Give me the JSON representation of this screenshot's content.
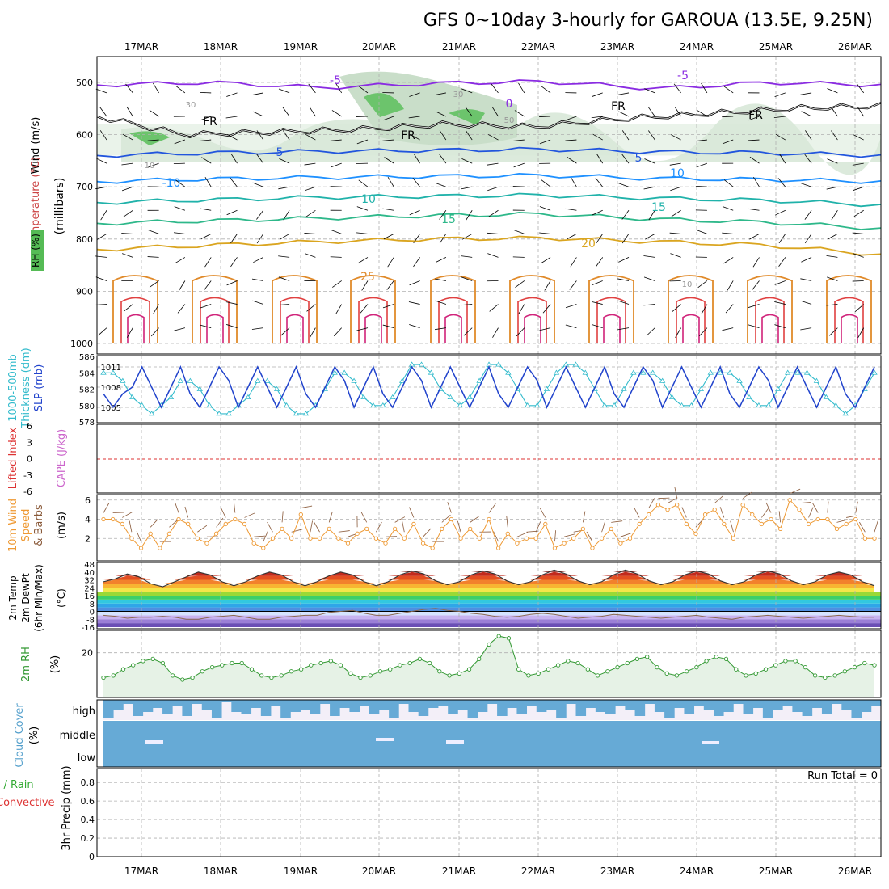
{
  "title": "GFS 0~10day 3-hourly for GAROUA (13.5E, 9.25N)",
  "colors": {
    "frame": "#000000",
    "grid": "#b0b0b0",
    "slp": "#2244cc",
    "thickness": "#33bbcc",
    "wind": "#ee9933",
    "rh": "#339933",
    "rhFill": "#e6f2e6",
    "cloud": "#66aad6",
    "cloudBg": "#f3eff8",
    "liRed": "#dd3333",
    "cape": "#cc66cc",
    "freezing": "#000000"
  },
  "chart_data": [
    {
      "type": "line",
      "panel": "upper-air",
      "ylabel": "(millibars)",
      "y_label_parts": [
        "Wind (m/s)",
        "Temperature (°C)",
        "RH (%)"
      ],
      "y_ticks": [
        500,
        600,
        700,
        800,
        900,
        1000
      ],
      "x_labels": [
        "17MAR",
        "18MAR",
        "19MAR",
        "20MAR",
        "21MAR",
        "22MAR",
        "23MAR",
        "24MAR",
        "25MAR",
        "26MAR"
      ],
      "contour_labels": [
        "-5",
        "-5",
        "0",
        "FR",
        "FR",
        "FR",
        "FR",
        "5",
        "5",
        "-10",
        "10",
        "10",
        "15",
        "15",
        "20",
        "25",
        "30",
        "10",
        "10",
        "30",
        "50"
      ],
      "isotherms": [
        {
          "label": "-5",
          "color": "#8a2be2",
          "p": [
            505,
            500,
            510,
            502,
            498,
            512,
            500,
            505
          ]
        },
        {
          "label": "5",
          "color": "#2255dd",
          "p": [
            640,
            635,
            632,
            630,
            628,
            633,
            635,
            640
          ]
        },
        {
          "label": "10",
          "color": "#1e90ff",
          "p": [
            690,
            685,
            682,
            680,
            678,
            684,
            686,
            690
          ]
        },
        {
          "label": "15",
          "color": "#20b2aa",
          "p": [
            730,
            725,
            720,
            718,
            716,
            722,
            726,
            735
          ]
        },
        {
          "label": "20",
          "color": "#2eb88a",
          "p": [
            770,
            765,
            760,
            755,
            752,
            762,
            768,
            780
          ]
        },
        {
          "label": "25",
          "color": "#daa520",
          "p": [
            820,
            812,
            805,
            800,
            798,
            805,
            812,
            830
          ]
        }
      ],
      "freezing_level": [
        565,
        600,
        595,
        590,
        580,
        585,
        570,
        560,
        550,
        545
      ]
    },
    {
      "type": "line",
      "panel": "pressure",
      "ylabel_left": "1000-500mb Thickness (dm)",
      "ylabel_right": "SLP (mb)",
      "left_ticks": [
        578,
        580,
        582,
        584,
        586
      ],
      "right_ticks": [
        1005,
        1008,
        1011
      ],
      "series": [
        {
          "name": "SLP",
          "values": [
            1007,
            1005,
            1007,
            1008,
            1011,
            1008,
            1005,
            1008,
            1011,
            1007,
            1005,
            1008,
            1011,
            1009,
            1005,
            1008,
            1011,
            1008,
            1005,
            1008,
            1011,
            1007,
            1005,
            1008,
            1011,
            1009,
            1005,
            1008,
            1011,
            1007,
            1005,
            1008,
            1011,
            1009,
            1005,
            1008,
            1011,
            1008,
            1005,
            1008,
            1011,
            1007,
            1005,
            1008,
            1011,
            1009,
            1005,
            1008,
            1011,
            1008,
            1005,
            1008,
            1011,
            1007,
            1005,
            1008,
            1011,
            1009,
            1005,
            1008,
            1011,
            1008,
            1005,
            1008,
            1011,
            1007,
            1005,
            1008,
            1011,
            1009,
            1005,
            1008,
            1011,
            1008,
            1005,
            1008,
            1011,
            1007,
            1005,
            1008,
            1011
          ]
        },
        {
          "name": "Thickness",
          "values": [
            584,
            584,
            583,
            581,
            580,
            579,
            580,
            581,
            583,
            583,
            582,
            580,
            579,
            579,
            580,
            581,
            583,
            583,
            582,
            580,
            579,
            579,
            580,
            582,
            584,
            584,
            583,
            581,
            580,
            580,
            581,
            583,
            585,
            585,
            584,
            582,
            581,
            580,
            581,
            583,
            585,
            585,
            584,
            582,
            580,
            580,
            582,
            584,
            585,
            585,
            584,
            582,
            580,
            580,
            582,
            584,
            584,
            584,
            583,
            581,
            580,
            580,
            582,
            584,
            584,
            584,
            583,
            581,
            580,
            580,
            582,
            584,
            584,
            584,
            583,
            581,
            580,
            579,
            580,
            582,
            584
          ]
        }
      ]
    },
    {
      "type": "line",
      "panel": "stability",
      "ylabel_left": "Lifted Index",
      "ylabel_right": "CAPE (J/kg)",
      "left_ticks": [
        "6",
        "3",
        "0",
        "-3",
        "-6"
      ],
      "li_values": [],
      "cape_values": []
    },
    {
      "type": "line",
      "panel": "wind",
      "ylabel": "10m Wind Speed & Barbs (m/s)",
      "y_ticks": [
        2,
        4,
        6
      ],
      "series": [
        {
          "name": "Wind speed",
          "values": [
            4,
            4,
            3.5,
            2,
            1,
            2.5,
            1,
            2.5,
            4,
            3.5,
            2,
            1.5,
            2.5,
            3.5,
            4,
            3.5,
            1.5,
            1,
            2,
            3,
            2,
            4.5,
            2,
            2,
            3,
            2,
            1.5,
            2.5,
            3,
            2,
            1.5,
            3,
            2,
            3.5,
            1.5,
            1,
            3,
            4,
            2,
            3,
            2,
            4,
            1,
            2.5,
            1.5,
            2,
            2,
            3.5,
            1,
            1.5,
            2,
            3,
            1,
            2,
            3,
            1.5,
            2,
            3.5,
            4.5,
            5.5,
            5,
            5.5,
            3.5,
            2.5,
            4.5,
            5,
            3.5,
            2,
            5.5,
            4.5,
            3.5,
            4,
            3,
            6,
            5,
            3.5,
            4,
            4,
            3,
            3.5,
            4,
            2,
            2
          ]
        }
      ]
    },
    {
      "type": "area",
      "panel": "temperature",
      "ylabel": "2m Temp / 2m DewPt (6hr Min/Max) (°C)",
      "y_ticks": [
        "48",
        "40",
        "32",
        "24",
        "16",
        "8",
        "0",
        "-8",
        "-16"
      ],
      "series": [
        {
          "name": "Temp",
          "values": [
            30,
            33,
            38,
            35,
            28,
            25,
            30,
            35,
            40,
            37,
            30,
            26,
            30,
            36,
            40,
            37,
            30,
            26,
            30,
            36,
            40,
            37,
            30,
            26,
            30,
            37,
            41,
            38,
            31,
            27,
            30,
            37,
            41,
            38,
            31,
            27,
            30,
            37,
            42,
            38,
            31,
            27,
            30,
            37,
            42,
            38,
            31,
            27,
            30,
            37,
            41,
            38,
            31,
            27,
            30,
            37,
            41,
            38,
            31,
            27,
            30,
            37,
            40,
            37,
            30,
            26
          ]
        },
        {
          "name": "DewPt",
          "values": [
            -4,
            -5,
            -7,
            -6,
            -6,
            -5,
            -6,
            -8,
            -8,
            -6,
            -5,
            -4,
            -6,
            -8,
            -8,
            -6,
            -5,
            -4,
            -4,
            -1,
            0,
            1,
            -2,
            -4,
            -4,
            -2,
            0,
            2,
            3,
            1,
            0,
            -2,
            -3,
            -5,
            -6,
            -5,
            -3,
            -2,
            -3,
            -5,
            -7,
            -6,
            -5,
            -3,
            -4,
            -5,
            -6,
            -7,
            -6,
            -5,
            -4,
            -6,
            -7,
            -8,
            -6,
            -5,
            -4,
            -5,
            -6,
            -7,
            -6,
            -5,
            -4,
            -5,
            -6,
            -6
          ]
        }
      ]
    },
    {
      "type": "area",
      "panel": "humidity",
      "ylabel": "2m RH (%)",
      "y_ticks": [
        20
      ],
      "series": [
        {
          "name": "RH",
          "values": [
            8,
            9,
            12,
            14,
            16,
            17,
            15,
            9,
            7,
            8,
            11,
            13,
            14,
            15,
            15,
            12,
            9,
            8,
            9,
            11,
            12,
            14,
            15,
            16,
            14,
            10,
            8,
            9,
            11,
            12,
            14,
            15,
            17,
            15,
            11,
            9,
            10,
            12,
            17,
            24,
            28,
            27,
            12,
            9,
            10,
            12,
            14,
            16,
            15,
            12,
            9,
            11,
            13,
            15,
            17,
            18,
            13,
            10,
            9,
            11,
            13,
            16,
            18,
            17,
            12,
            9,
            10,
            12,
            14,
            16,
            16,
            13,
            9,
            8,
            9,
            11,
            13,
            15,
            14
          ]
        }
      ]
    },
    {
      "type": "bar",
      "panel": "cloud",
      "ylabel": "Cloud Cover (%)",
      "levels": [
        "high",
        "middle",
        "low"
      ],
      "high": [
        0.9,
        0.5,
        0.2,
        0.8,
        0.6,
        0.4,
        0.7,
        0.3,
        0.8,
        0.2,
        0.5,
        0.9,
        0.1,
        0.6,
        0.7,
        0.4,
        0.8,
        0.3,
        0.9,
        0.6,
        0.5,
        0.7,
        0.2,
        0.8,
        0.4,
        0.6,
        0.3,
        0.7,
        0.5,
        0.9,
        0.2,
        0.6,
        0.8,
        0.4,
        0.3,
        0.7,
        0.5,
        0.9,
        0.6,
        0.2,
        0.8,
        0.4,
        0.7,
        0.3,
        0.6,
        0.5,
        0.9,
        0.2,
        0.8,
        0.4,
        0.6,
        0.7,
        0.3,
        0.5,
        0.8,
        0.2,
        0.6,
        0.9,
        0.4,
        0.7,
        0.3,
        0.5,
        0.8,
        0.6,
        0.2,
        0.7,
        0.4,
        0.9,
        0.5,
        0.3,
        0.6,
        0.8,
        0.4,
        0.7,
        0.2,
        0.5,
        0.9,
        0.6,
        0.3
      ],
      "middle": 1.0,
      "low": 1.0
    },
    {
      "type": "bar",
      "panel": "precip",
      "ylabel_left": "Total / Rain / Convective",
      "ylabel": "3hr Precip (mm)",
      "y_ticks": [
        "0",
        "0.2",
        "0.4",
        "0.6",
        "0.8"
      ],
      "run_total_label": "Run Total = 0",
      "values": []
    }
  ]
}
